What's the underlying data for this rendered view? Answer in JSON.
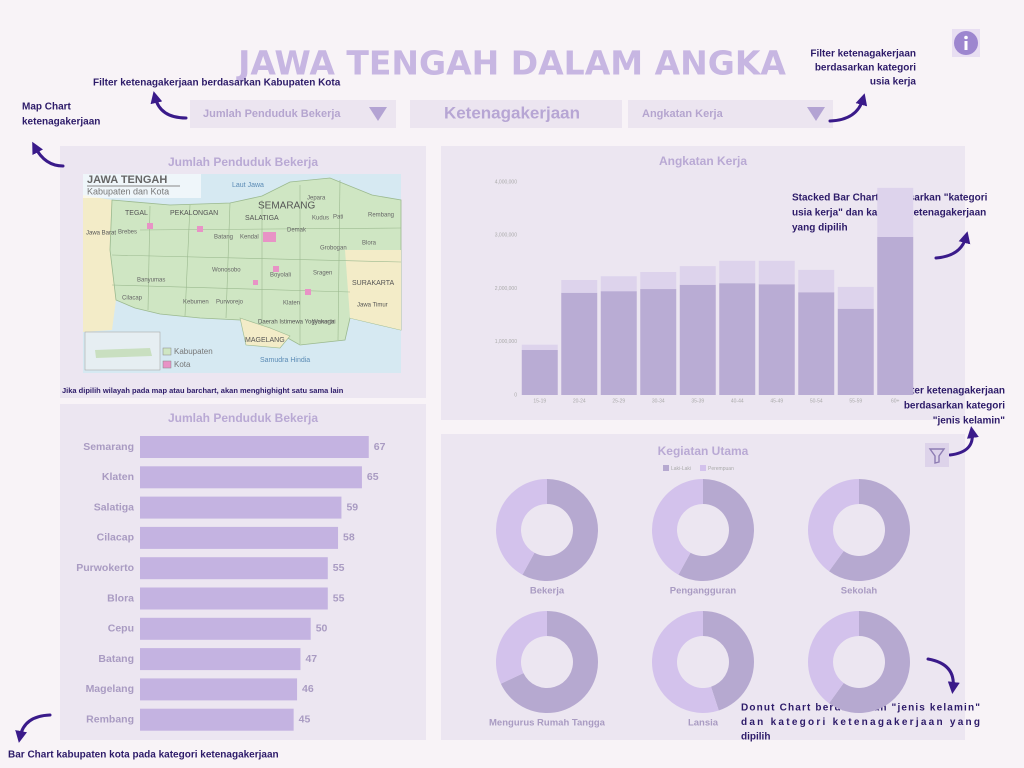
{
  "header": {
    "title": "JAWA TENGAH DALAM ANGKA"
  },
  "filters": [
    "Jumlah Penduduk Bekerja",
    "Ketenagakerjaan",
    "Angkatan Kerja"
  ],
  "annotations": {
    "filter_kabupaten": "Filter ketenagakerjaan berdasarkan Kabupaten Kota",
    "map_chart": [
      "Map Chart",
      "ketenagakerjaan"
    ],
    "filter_usia": [
      "Filter ketenagakerjaan",
      "berdasarkan kategori",
      "usia kerja"
    ],
    "stacked": [
      "Stacked Bar Chart berdasarkan \"kategori",
      "usia kerja\" dan kategori ketenagakerjaan",
      "yang dipilih"
    ],
    "filter_gender": [
      "Filter ketenagakerjaan",
      "berdasarkan kategori",
      "\"jenis kelamin\""
    ],
    "donut": [
      "Donut Chart berdasarkan \"jenis kelamin\"",
      "dan kategori ketenagakerjaan yang",
      "dipilih"
    ],
    "bar": "Bar Chart kabupaten kota pada kategori ketenagakerjaan",
    "map_note": "Jika dipilih wilayah pada map atau barchart, akan menghighight satu sama lain"
  },
  "map": {
    "title": "Jumlah Penduduk Bekerja",
    "heading": "JAWA TENGAH",
    "subheading": "Kabupaten dan Kota",
    "labels": [
      "Laut Jawa",
      "SEMARANG",
      "TEGAL",
      "PEKALONGAN",
      "SALATIGA",
      "SURAKARTA",
      "MAGELANG",
      "Jawa Barat",
      "Jawa Timur",
      "Samudra Hindia",
      "Daerah Istimewa Yogyakarta",
      "Jepara",
      "Kudus",
      "Pati",
      "Rembang",
      "Blora",
      "Grobogan",
      "Demak",
      "Kendal",
      "Batang",
      "Brebes",
      "Cilacap",
      "Banyumas",
      "Kebumen",
      "Purworejo",
      "Klaten",
      "Wonogiri",
      "Sragen",
      "Boyolali",
      "Wonosobo"
    ],
    "legend": [
      "Kabupaten",
      "Kota"
    ]
  },
  "chart_data": [
    {
      "type": "hbar",
      "title": "Jumlah Penduduk Bekerja",
      "categories": [
        "Semarang",
        "Klaten",
        "Salatiga",
        "Cilacap",
        "Purwokerto",
        "Blora",
        "Cepu",
        "Batang",
        "Magelang",
        "Rembang"
      ],
      "values": [
        67,
        65,
        59,
        58,
        55,
        55,
        50,
        47,
        46,
        45
      ],
      "color": "#c4b3e1",
      "xlim": [
        0,
        70
      ]
    },
    {
      "type": "stacked_bar",
      "title": "Angkatan Kerja",
      "categories": [
        "15-19",
        "20-24",
        "25-29",
        "30-34",
        "35-39",
        "40-44",
        "45-49",
        "50-54",
        "55-59",
        "60+"
      ],
      "series": [
        {
          "color": "#b9acd4",
          "values": [
            845000,
            1920000,
            1950000,
            1990000,
            2070000,
            2100000,
            2080000,
            1930000,
            1620000,
            2970000
          ]
        },
        {
          "color": "#ddd3ec",
          "values": [
            100000,
            240000,
            280000,
            320000,
            350000,
            420000,
            440000,
            420000,
            410000,
            920000
          ]
        }
      ],
      "ylim": [
        0,
        4000000
      ],
      "yticks": [
        0,
        {
          "value": 1000000,
          "label": "1,000,000"
        },
        {
          "value": 2000000,
          "label": "2,000,000"
        },
        {
          "value": 3000000,
          "label": "3,000,000"
        },
        {
          "value": 4000000,
          "label": "4,000,000"
        }
      ]
    },
    {
      "type": "donut",
      "title": "Kegiatan Utama",
      "categories": [
        "Bekerja",
        "Pengangguran",
        "Sekolah",
        "Mengurus Rumah Tangga",
        "Lansia",
        null
      ],
      "series": [
        {
          "name": "Laki-Laki",
          "color": "#b6a9d0",
          "values": [
            58,
            58,
            60,
            68,
            45,
            60
          ]
        },
        {
          "name": "Perempuan",
          "color": "#d3c2ec",
          "values": [
            42,
            42,
            40,
            32,
            55,
            40
          ]
        }
      ]
    }
  ]
}
